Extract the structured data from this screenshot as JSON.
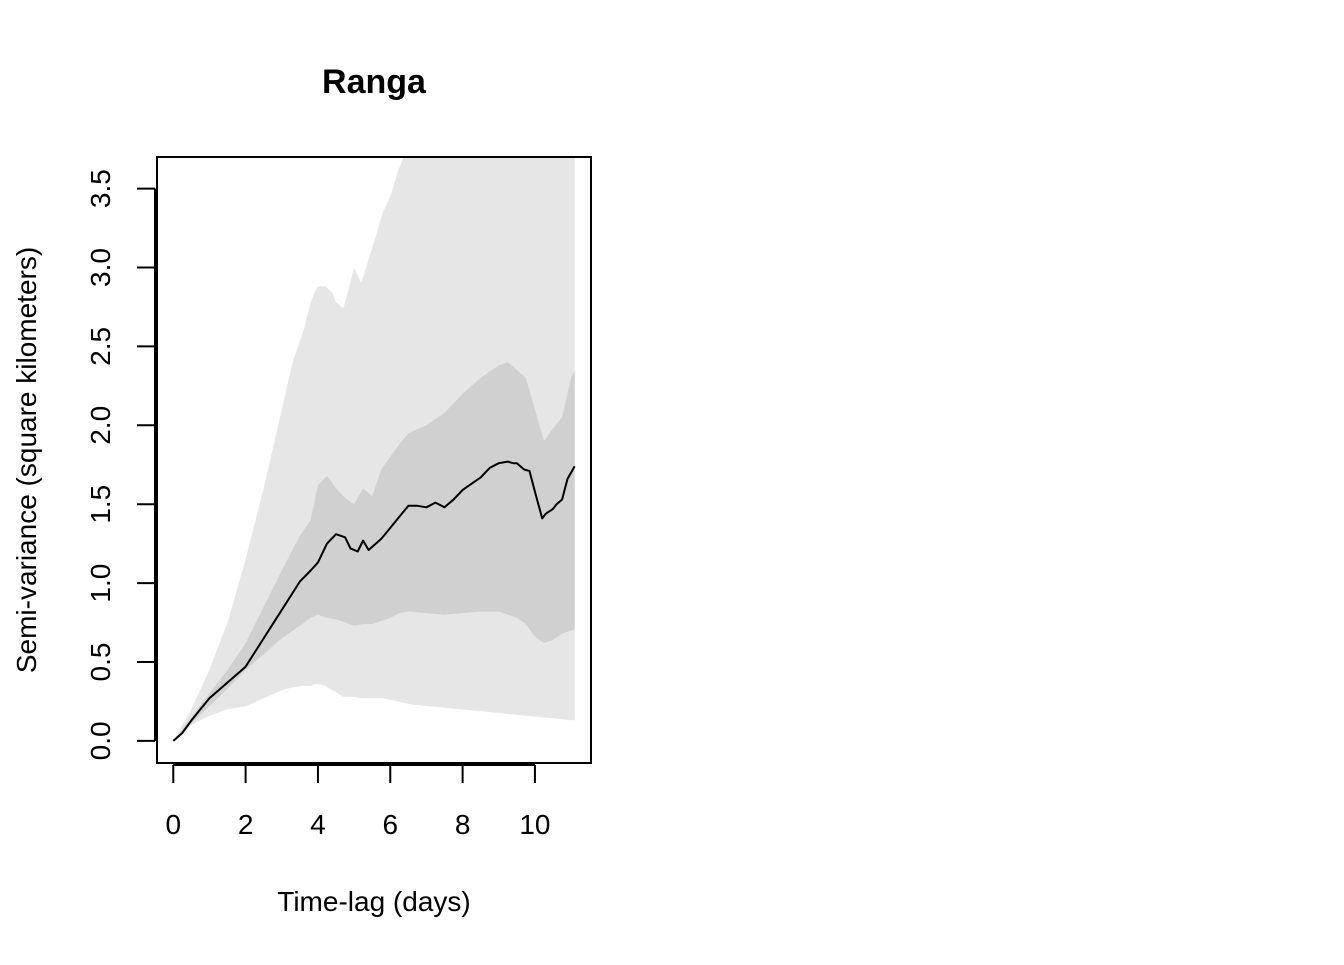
{
  "chart_data": {
    "type": "line",
    "title": "Ranga",
    "xlabel": "Time-lag (days)",
    "ylabel": "Semi-variance (square kilometers)",
    "xlim": [
      -0.45,
      11.55
    ],
    "ylim": [
      -0.14,
      3.7
    ],
    "grid": false,
    "x_ticks": [
      0,
      2,
      4,
      6,
      8,
      10
    ],
    "x_tick_labels": [
      "0",
      "2",
      "4",
      "6",
      "8",
      "10"
    ],
    "y_ticks": [
      0.0,
      0.5,
      1.0,
      1.5,
      2.0,
      2.5,
      3.0,
      3.5
    ],
    "y_tick_labels": [
      "0.0",
      "0.5",
      "1.0",
      "1.5",
      "2.0",
      "2.5",
      "3.0",
      "3.5"
    ],
    "colors": {
      "outer_band": "#e6e6e6",
      "inner_band": "#d0d0d0",
      "line": "#000000",
      "axis": "#000000"
    },
    "series": [
      {
        "x": [
          0,
          0.25,
          0.5,
          0.75,
          1.0,
          1.5,
          2.0,
          2.5,
          3.0,
          3.5,
          3.8,
          4.0,
          4.25,
          4.5,
          4.75,
          4.9,
          5.1,
          5.25,
          5.4,
          5.6,
          5.75,
          6.0,
          6.25,
          6.5,
          6.75,
          7.0,
          7.25,
          7.5,
          7.75,
          8.0,
          8.25,
          8.5,
          8.75,
          9.0,
          9.25,
          9.4,
          9.5,
          9.7,
          9.85,
          10.0,
          10.2,
          10.3,
          10.5,
          10.6,
          10.75,
          10.9,
          11.1
        ],
        "y": [
          0.0,
          0.05,
          0.13,
          0.2,
          0.27,
          0.37,
          0.47,
          0.65,
          0.83,
          1.01,
          1.08,
          1.13,
          1.25,
          1.31,
          1.29,
          1.22,
          1.2,
          1.27,
          1.21,
          1.25,
          1.28,
          1.35,
          1.42,
          1.49,
          1.49,
          1.48,
          1.51,
          1.48,
          1.53,
          1.59,
          1.63,
          1.67,
          1.73,
          1.76,
          1.77,
          1.76,
          1.76,
          1.72,
          1.71,
          1.58,
          1.41,
          1.44,
          1.47,
          1.5,
          1.53,
          1.66,
          1.74
        ]
      }
    ],
    "bands": [
      {
        "level": "outer",
        "x": [
          0,
          0.5,
          1.0,
          1.5,
          2.0,
          2.5,
          3.0,
          3.3,
          3.6,
          3.8,
          3.9,
          4.0,
          4.2,
          4.4,
          4.5,
          4.7,
          4.8,
          5.0,
          5.2,
          5.4,
          5.6,
          5.8,
          6.0,
          6.2,
          6.4,
          6.6,
          11.1
        ],
        "upper": [
          0.0,
          0.2,
          0.45,
          0.75,
          1.15,
          1.6,
          2.1,
          2.4,
          2.6,
          2.78,
          2.84,
          2.88,
          2.88,
          2.84,
          2.78,
          2.74,
          2.82,
          3.0,
          2.9,
          3.05,
          3.2,
          3.35,
          3.45,
          3.6,
          3.72,
          3.9,
          3.9
        ],
        "lower": [
          0.0,
          0.1,
          0.16,
          0.2,
          0.22,
          0.27,
          0.32,
          0.34,
          0.35,
          0.35,
          0.36,
          0.36,
          0.35,
          0.32,
          0.31,
          0.28,
          0.28,
          0.28,
          0.27,
          0.27,
          0.27,
          0.27,
          0.26,
          0.25,
          0.24,
          0.23,
          0.13
        ]
      },
      {
        "level": "inner",
        "x": [
          0,
          0.5,
          1.0,
          1.5,
          2.0,
          2.5,
          3.0,
          3.5,
          3.8,
          4.0,
          4.25,
          4.5,
          4.75,
          5.0,
          5.25,
          5.5,
          5.75,
          6.0,
          6.25,
          6.5,
          7.0,
          7.5,
          8.0,
          8.5,
          9.0,
          9.25,
          9.5,
          9.75,
          10.0,
          10.25,
          10.5,
          10.75,
          11.0,
          11.1
        ],
        "upper": [
          0.0,
          0.15,
          0.3,
          0.45,
          0.62,
          0.85,
          1.08,
          1.3,
          1.4,
          1.62,
          1.68,
          1.6,
          1.54,
          1.5,
          1.6,
          1.55,
          1.72,
          1.8,
          1.88,
          1.95,
          2.0,
          2.08,
          2.2,
          2.3,
          2.38,
          2.4,
          2.35,
          2.3,
          2.1,
          1.9,
          1.98,
          2.05,
          2.3,
          2.35
        ],
        "lower": [
          0.0,
          0.11,
          0.22,
          0.33,
          0.45,
          0.55,
          0.65,
          0.73,
          0.78,
          0.8,
          0.78,
          0.77,
          0.75,
          0.73,
          0.74,
          0.74,
          0.76,
          0.78,
          0.81,
          0.82,
          0.81,
          0.8,
          0.81,
          0.82,
          0.82,
          0.8,
          0.78,
          0.74,
          0.66,
          0.62,
          0.64,
          0.68,
          0.7,
          0.7
        ]
      }
    ]
  }
}
